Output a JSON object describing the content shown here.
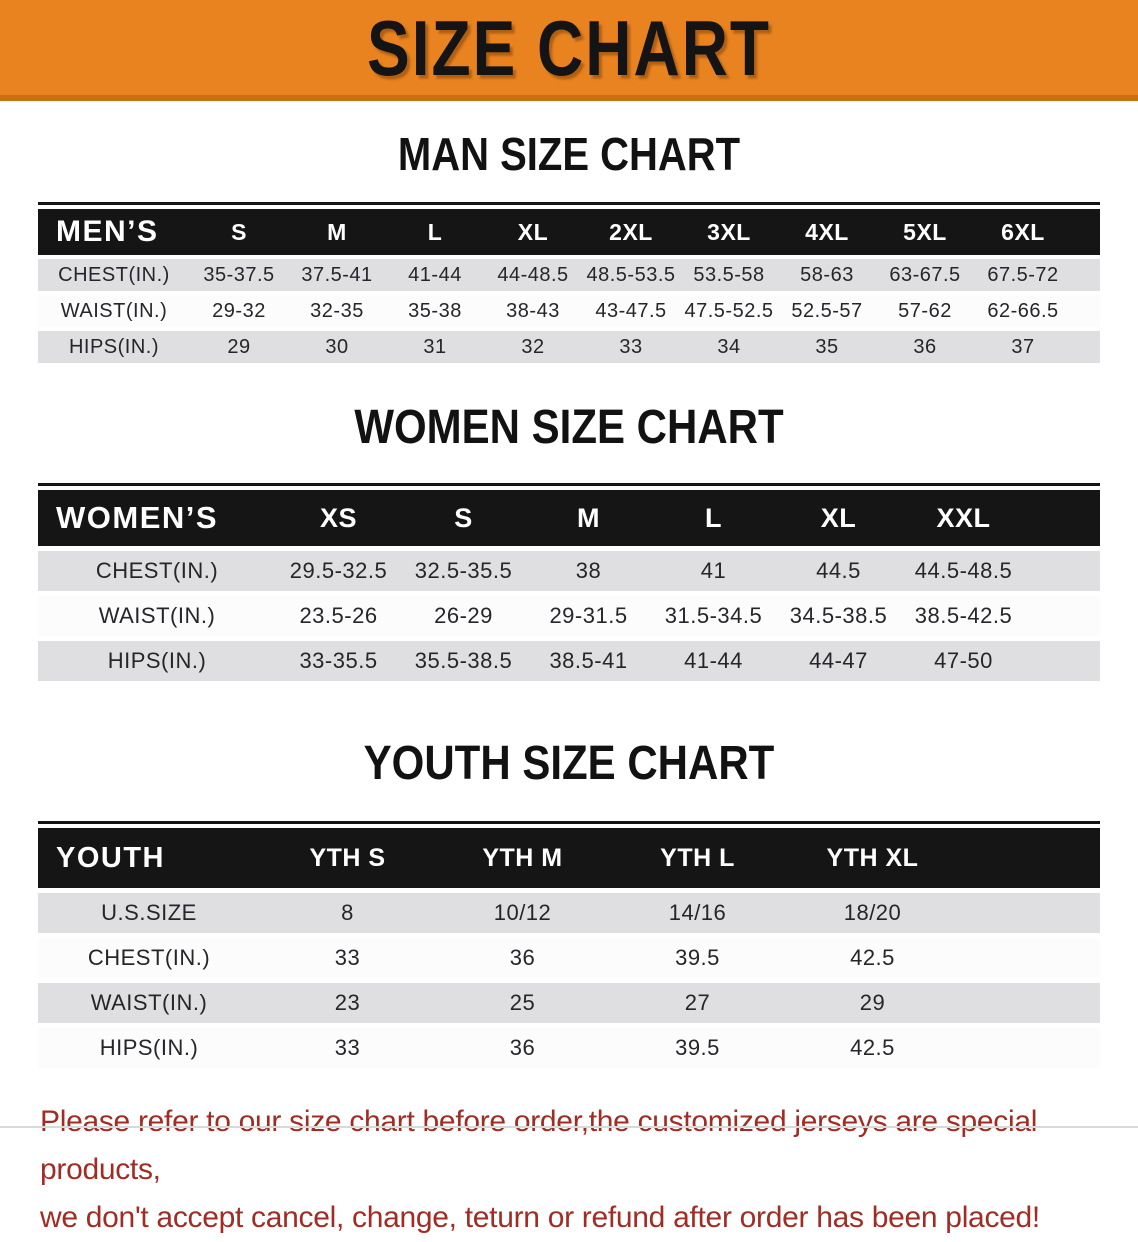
{
  "banner": {
    "title": "SIZE CHART"
  },
  "colors": {
    "banner_bg": "#E8831F",
    "banner_border": "#C96F12",
    "table_header_bg": "#151515",
    "row_gray": "#DFDFE1",
    "row_white": "#FCFCFD",
    "disclaimer_red": "#A12C24"
  },
  "sections": [
    {
      "heading": "MAN SIZE CHART",
      "table": {
        "corner": "MEN’S",
        "columns": [
          "S",
          "M",
          "L",
          "XL",
          "2XL",
          "3XL",
          "4XL",
          "5XL",
          "6XL"
        ],
        "rows": [
          {
            "label": "CHEST(IN.)",
            "values": [
              "35-37.5",
              "37.5-41",
              "41-44",
              "44-48.5",
              "48.5-53.5",
              "53.5-58",
              "58-63",
              "63-67.5",
              "67.5-72"
            ]
          },
          {
            "label": "WAIST(IN.)",
            "values": [
              "29-32",
              "32-35",
              "35-38",
              "38-43",
              "43-47.5",
              "47.5-52.5",
              "52.5-57",
              "57-62",
              "62-66.5"
            ]
          },
          {
            "label": "HIPS(IN.)",
            "values": [
              "29",
              "30",
              "31",
              "32",
              "33",
              "34",
              "35",
              "36",
              "37"
            ]
          }
        ]
      }
    },
    {
      "heading": "WOMEN SIZE CHART",
      "table": {
        "corner": "WOMEN’S",
        "columns": [
          "XS",
          "S",
          "M",
          "L",
          "XL",
          "XXL"
        ],
        "rows": [
          {
            "label": "CHEST(IN.)",
            "values": [
              "29.5-32.5",
              "32.5-35.5",
              "38",
              "41",
              "44.5",
              "44.5-48.5"
            ]
          },
          {
            "label": "WAIST(IN.)",
            "values": [
              "23.5-26",
              "26-29",
              "29-31.5",
              "31.5-34.5",
              "34.5-38.5",
              "38.5-42.5"
            ]
          },
          {
            "label": "HIPS(IN.)",
            "values": [
              "33-35.5",
              "35.5-38.5",
              "38.5-41",
              "41-44",
              "44-47",
              "47-50"
            ]
          }
        ]
      }
    },
    {
      "heading": "YOUTH SIZE CHART",
      "table": {
        "corner": "YOUTH",
        "columns": [
          "YTH S",
          "YTH M",
          "YTH L",
          "YTH XL"
        ],
        "rows": [
          {
            "label": "U.S.SIZE",
            "values": [
              "8",
              "10/12",
              "14/16",
              "18/20"
            ]
          },
          {
            "label": "CHEST(IN.)",
            "values": [
              "33",
              "36",
              "39.5",
              "42.5"
            ]
          },
          {
            "label": "WAIST(IN.)",
            "values": [
              "23",
              "25",
              "27",
              "29"
            ]
          },
          {
            "label": "HIPS(IN.)",
            "values": [
              "33",
              "36",
              "39.5",
              "42.5"
            ]
          }
        ]
      }
    }
  ],
  "disclaimer": {
    "line1": "Please refer to our size chart before order,the customized jerseys are special products,",
    "line2": "we don't accept cancel, change, teturn or refund after order has been placed!"
  }
}
